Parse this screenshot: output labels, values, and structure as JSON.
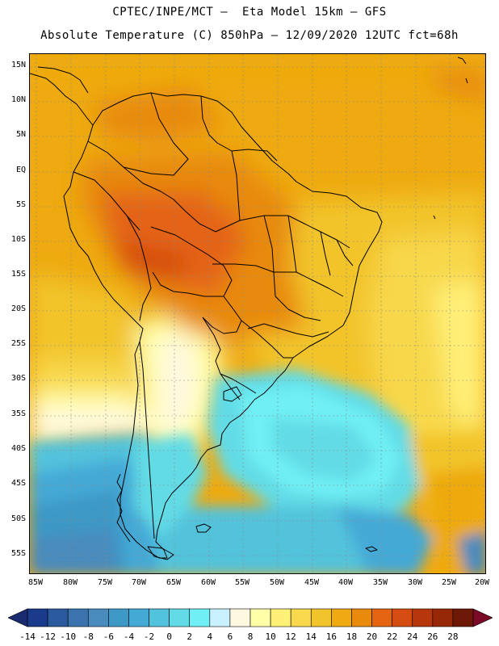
{
  "header": {
    "line1": "CPTEC/INPE/MCT —  Eta Model 15km — GFS",
    "line2": "Absolute Temperature (C) 850hPa — 12/09/2020 12UTC fct=68h"
  },
  "map": {
    "lat_ticks": [
      "15N",
      "10N",
      "5N",
      "EQ",
      "5S",
      "10S",
      "15S",
      "20S",
      "25S",
      "30S",
      "35S",
      "40S",
      "45S",
      "50S",
      "55S"
    ],
    "lon_ticks": [
      "85W",
      "80W",
      "75W",
      "70W",
      "65W",
      "60W",
      "55W",
      "50W",
      "45W",
      "40W",
      "35W",
      "30W",
      "25W",
      "20W"
    ],
    "lat_range": [
      17,
      -58
    ],
    "lon_range": [
      -86,
      -19.5
    ]
  },
  "colorbar": {
    "labels": [
      "-14",
      "-12",
      "-10",
      "-8",
      "-6",
      "-4",
      "-2",
      "0",
      "2",
      "4",
      "6",
      "8",
      "10",
      "12",
      "14",
      "16",
      "18",
      "20",
      "22",
      "24",
      "26",
      "28"
    ],
    "colors": [
      "#1a3a8c",
      "#2c5a9e",
      "#3a73ad",
      "#4a8bbd",
      "#3e98c6",
      "#45a9d6",
      "#52c3dc",
      "#62dbe6",
      "#70f0f4",
      "#c8f0ff",
      "#fff8e0",
      "#ffffa8",
      "#fff078",
      "#f8d84c",
      "#f2c42c",
      "#eeaa10",
      "#e88a0c",
      "#e46412",
      "#d44c10",
      "#b8360c",
      "#962808",
      "#6e1808"
    ]
  }
}
